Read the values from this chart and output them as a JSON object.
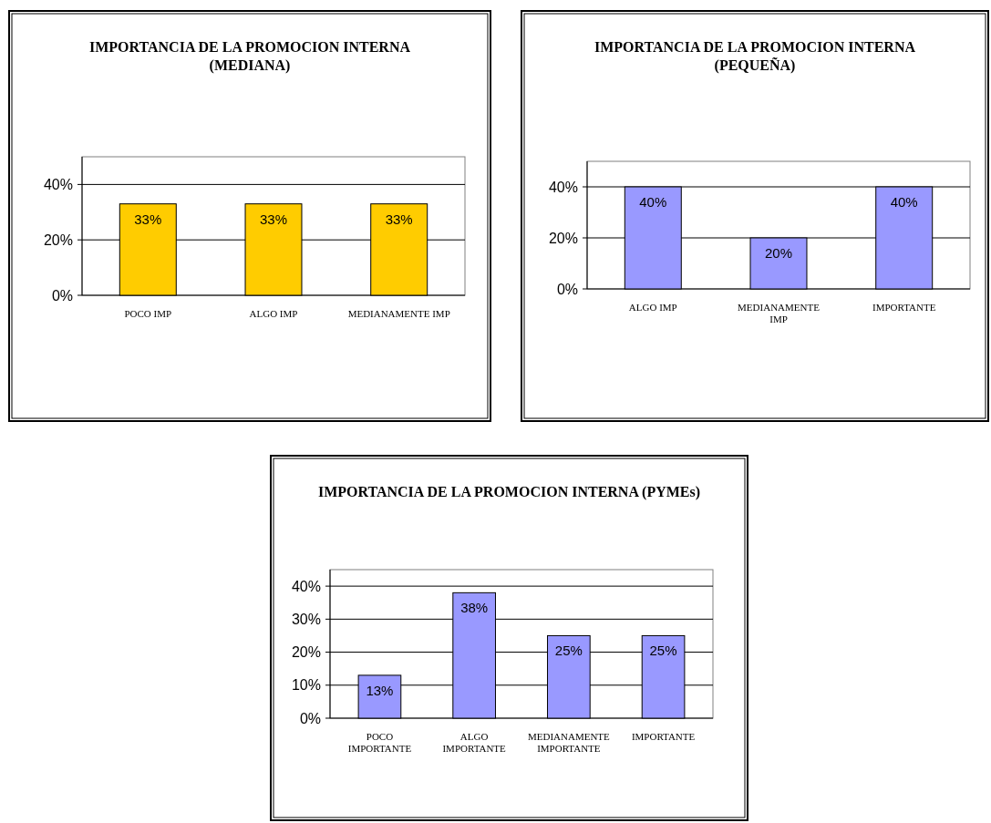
{
  "chart_data": [
    {
      "type": "bar",
      "title": "IMPORTANCIA DE LA  PROMOCION INTERNA (MEDIANA)",
      "categories": [
        "POCO IMP",
        "ALGO IMP",
        "MEDIANAMENTE IMP"
      ],
      "values": [
        33,
        33,
        33
      ],
      "value_labels": [
        "33%",
        "33%",
        "33%"
      ],
      "color": "#ffcc00",
      "ylim": [
        0,
        50
      ],
      "yticks": [
        {
          "value": 0,
          "label": "0%"
        },
        {
          "value": 20,
          "label": "20%"
        },
        {
          "value": 40,
          "label": "40%"
        }
      ],
      "grid": "y"
    },
    {
      "type": "bar",
      "title": "IMPORTANCIA DE LA  PROMOCION INTERNA (PEQUEÑA)",
      "categories": [
        "ALGO IMP",
        "MEDIANAMENTE IMP",
        "IMPORTANTE"
      ],
      "values": [
        40,
        20,
        40
      ],
      "value_labels": [
        "40%",
        "20%",
        "40%"
      ],
      "color": "#9999ff",
      "ylim": [
        0,
        50
      ],
      "yticks": [
        {
          "value": 0,
          "label": "0%"
        },
        {
          "value": 20,
          "label": "20%"
        },
        {
          "value": 40,
          "label": "40%"
        }
      ],
      "grid": "y"
    },
    {
      "type": "bar",
      "title": "IMPORTANCIA DE LA PROMOCION INTERNA (PYMEs)",
      "categories": [
        "POCO IMPORTANTE",
        "ALGO IMPORTANTE",
        "MEDIANAMENTE IMPORTANTE",
        "IMPORTANTE"
      ],
      "values": [
        13,
        38,
        25,
        25
      ],
      "value_labels": [
        "13%",
        "38%",
        "25%",
        "25%"
      ],
      "color": "#9999ff",
      "ylim": [
        0,
        45
      ],
      "yticks": [
        {
          "value": 0,
          "label": "0%"
        },
        {
          "value": 10,
          "label": "10%"
        },
        {
          "value": 20,
          "label": "20%"
        },
        {
          "value": 30,
          "label": "30%"
        },
        {
          "value": 40,
          "label": "40%"
        }
      ],
      "grid": "y"
    }
  ]
}
